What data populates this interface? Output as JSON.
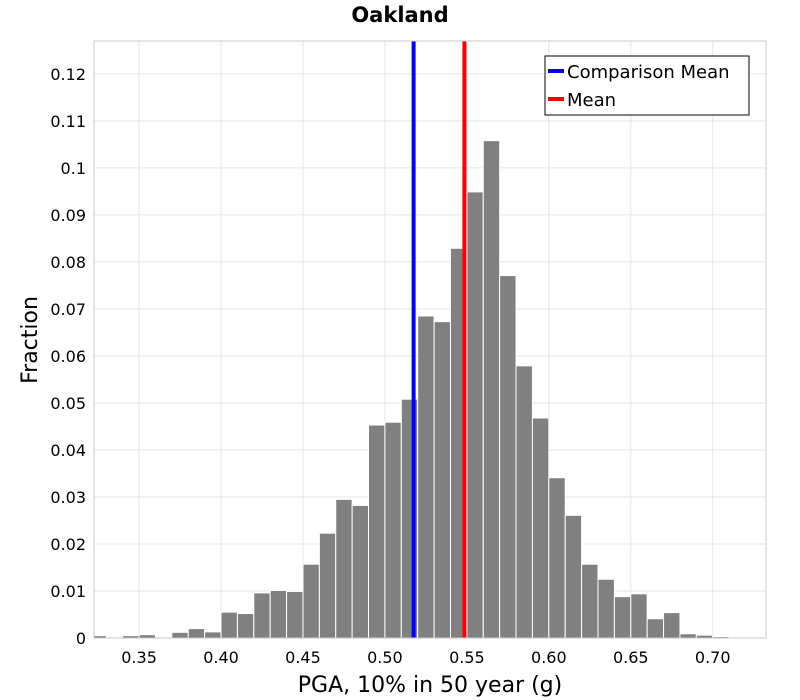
{
  "chart_data": {
    "type": "bar",
    "title": "Oakland",
    "xlabel": "PGA, 10% in 50 year (g)",
    "ylabel": "Fraction",
    "xlim": [
      0.3225,
      0.7325
    ],
    "ylim": [
      0,
      0.127
    ],
    "grid": true,
    "bar_color": "#808080",
    "xticks": [
      "0.35",
      "0.40",
      "0.45",
      "0.50",
      "0.55",
      "0.60",
      "0.65",
      "0.70"
    ],
    "xtick_values": [
      0.35,
      0.4,
      0.45,
      0.5,
      0.55,
      0.6,
      0.65,
      0.7
    ],
    "yticks": [
      "0",
      "0.01",
      "0.02",
      "0.03",
      "0.04",
      "0.05",
      "0.06",
      "0.07",
      "0.08",
      "0.09",
      "0.1",
      "0.11",
      "0.12"
    ],
    "ytick_values": [
      0,
      0.01,
      0.02,
      0.03,
      0.04,
      0.05,
      0.06,
      0.07,
      0.08,
      0.09,
      0.1,
      0.11,
      0.12
    ],
    "bin_width": 0.01,
    "bin_centers": [
      0.325,
      0.335,
      0.345,
      0.355,
      0.365,
      0.375,
      0.385,
      0.395,
      0.405,
      0.415,
      0.425,
      0.435,
      0.445,
      0.455,
      0.465,
      0.475,
      0.485,
      0.495,
      0.505,
      0.515,
      0.525,
      0.535,
      0.545,
      0.555,
      0.565,
      0.575,
      0.585,
      0.595,
      0.605,
      0.615,
      0.625,
      0.635,
      0.645,
      0.655,
      0.665,
      0.675,
      0.685,
      0.695,
      0.705,
      0.715,
      0.725
    ],
    "values": [
      0.0005,
      0.0002,
      0.0005,
      0.0007,
      0.0001,
      0.0012,
      0.002,
      0.0013,
      0.0055,
      0.0052,
      0.0096,
      0.0101,
      0.0099,
      0.0157,
      0.0223,
      0.0295,
      0.0282,
      0.0453,
      0.0459,
      0.0508,
      0.0685,
      0.0673,
      0.0829,
      0.0949,
      0.1058,
      0.0771,
      0.0579,
      0.0468,
      0.0341,
      0.0261,
      0.0157,
      0.0125,
      0.0088,
      0.0094,
      0.0041,
      0.0054,
      0.0009,
      0.0006,
      0.0003,
      0.0002,
      0.0001
    ],
    "vlines": [
      {
        "name": "Comparison Mean",
        "x": 0.5175,
        "color": "#0000ff"
      },
      {
        "name": "Mean",
        "x": 0.5485,
        "color": "#ff0000"
      }
    ],
    "legend_position": "top-right"
  }
}
